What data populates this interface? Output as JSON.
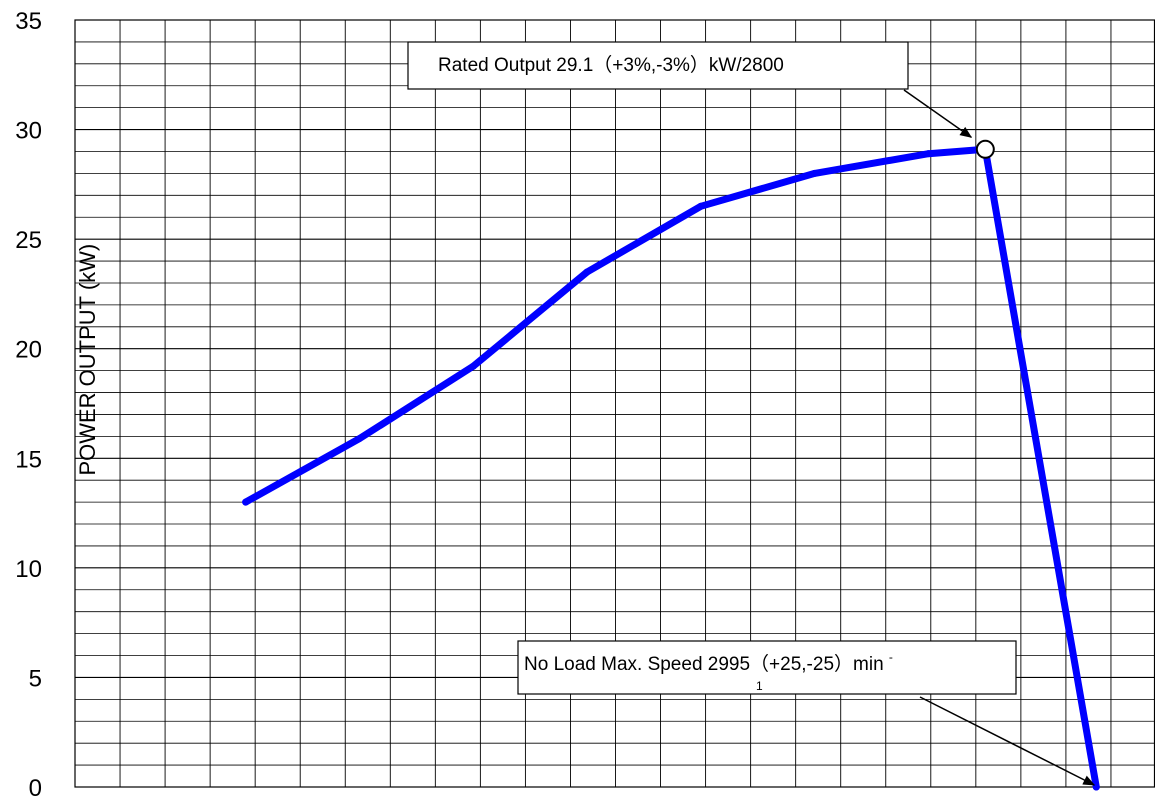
{
  "chart_data": {
    "type": "line",
    "title": "",
    "xlabel": "",
    "ylabel": "POWER OUTPUT (kW)",
    "ylim": [
      0,
      35
    ],
    "yticks": [
      "0",
      "5",
      "10",
      "15",
      "20",
      "25",
      "30",
      "35"
    ],
    "xlim": [
      1200,
      3100
    ],
    "grid": true,
    "series": [
      {
        "color": "#0000ff",
        "x": [
          1500,
          1700,
          1900,
          2100,
          2300,
          2500,
          2700,
          2800,
          2995
        ],
        "y": [
          13.0,
          15.9,
          19.2,
          23.5,
          26.5,
          28.0,
          28.9,
          29.1,
          0
        ]
      }
    ],
    "rated_point": {
      "x": 2800,
      "y": 29.1
    },
    "annotations": [
      {
        "id": "rated",
        "text": "Rated Output 29.1（+3%,-3%）kW/2800",
        "target_x": 2800,
        "target_y": 29.1
      },
      {
        "id": "noload",
        "text": "No Load Max. Speed 2995（+25,-25）min",
        "superscript": "-",
        "wrapped": "1",
        "target_x": 2995,
        "target_y": 0
      }
    ]
  }
}
